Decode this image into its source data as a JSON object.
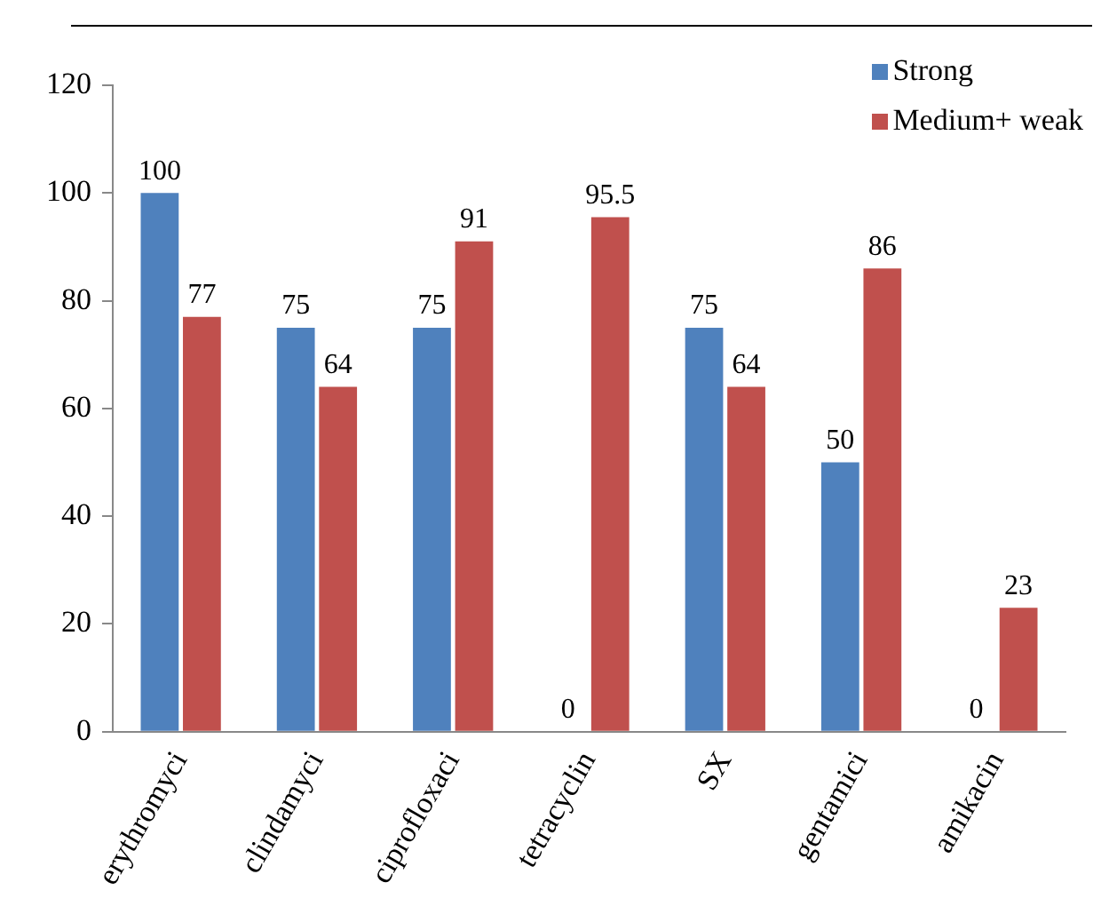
{
  "chart_data": {
    "type": "bar",
    "categories": [
      "erythromyci",
      "clindamyci",
      "ciprofloxaci",
      "tetracyclin",
      "SX",
      "gentamici",
      "amikacin"
    ],
    "series": [
      {
        "name": "Strong",
        "color": "#4f81bd",
        "values": [
          100,
          75,
          75,
          0,
          75,
          50,
          0
        ]
      },
      {
        "name": "Medium+ weak",
        "color": "#c0504d",
        "values": [
          77,
          64,
          91,
          95.5,
          64,
          86,
          23
        ]
      }
    ],
    "ylim": [
      0,
      120
    ],
    "yticks": [
      0,
      20,
      40,
      60,
      80,
      100,
      120
    ],
    "grid": false,
    "legend": "top right",
    "data_labels": true
  }
}
